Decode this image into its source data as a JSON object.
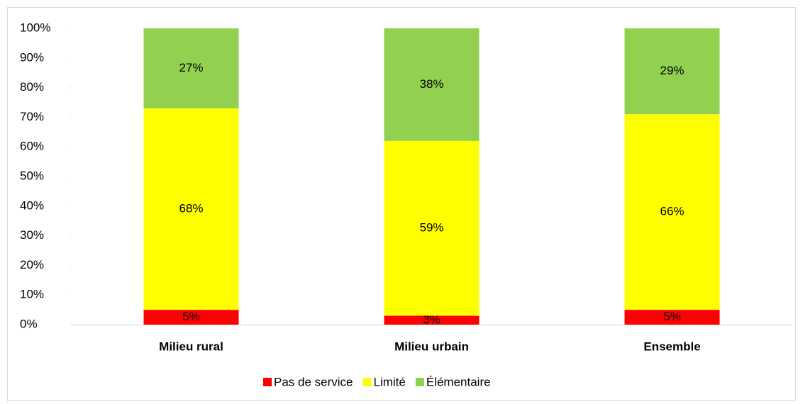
{
  "chart_data": {
    "type": "stacked_bar",
    "categories": [
      "Milieu rural",
      "Milieu urbain",
      "Ensemble"
    ],
    "series": [
      {
        "name": "Pas de service",
        "color": "#ff0000",
        "values": [
          5,
          3,
          5
        ],
        "value_labels": [
          "5%",
          "3%",
          "5%"
        ]
      },
      {
        "name": "Limité",
        "color": "#ffff00",
        "values": [
          68,
          59,
          66
        ],
        "value_labels": [
          "68%",
          "59%",
          "66%"
        ]
      },
      {
        "name": "Élémentaire",
        "color": "#92d050",
        "values": [
          27,
          38,
          29
        ],
        "value_labels": [
          "27%",
          "38%",
          "29%"
        ]
      }
    ],
    "ylim": [
      0,
      100
    ],
    "yticks": [
      {
        "value": 0,
        "label": "0%"
      },
      {
        "value": 10,
        "label": "10%"
      },
      {
        "value": 20,
        "label": "20%"
      },
      {
        "value": 30,
        "label": "30%"
      },
      {
        "value": 40,
        "label": "40%"
      },
      {
        "value": 50,
        "label": "50%"
      },
      {
        "value": 60,
        "label": "60%"
      },
      {
        "value": 70,
        "label": "70%"
      },
      {
        "value": 80,
        "label": "80%"
      },
      {
        "value": 90,
        "label": "90%"
      },
      {
        "value": 100,
        "label": "100%"
      }
    ],
    "legend": "bottom"
  }
}
